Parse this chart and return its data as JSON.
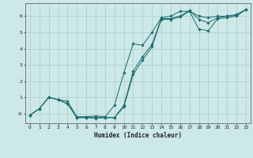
{
  "xlabel": "Humidex (Indice chaleur)",
  "ylabel": "",
  "bg_color": "#cce8e8",
  "grid_color": "#b0c8c8",
  "line_color": "#1a6b6b",
  "xlim": [
    -0.5,
    23.5
  ],
  "ylim": [
    -0.6,
    6.8
  ],
  "yticks": [
    0,
    1,
    2,
    3,
    4,
    5,
    6
  ],
  "ytick_labels": [
    "-0",
    "1",
    "2",
    "3",
    "4",
    "5",
    "6"
  ],
  "xticks": [
    0,
    1,
    2,
    3,
    4,
    5,
    6,
    7,
    8,
    9,
    10,
    11,
    12,
    13,
    14,
    15,
    16,
    17,
    18,
    19,
    20,
    21,
    22,
    23
  ],
  "series": [
    {
      "x": [
        0,
        1,
        2,
        3,
        4,
        5,
        6,
        7,
        8,
        9,
        10,
        11,
        12,
        13,
        14,
        15,
        16,
        17,
        18,
        19,
        20,
        21,
        22,
        23
      ],
      "y": [
        -0.1,
        0.3,
        1.0,
        0.85,
        0.75,
        -0.2,
        -0.2,
        -0.15,
        -0.2,
        0.5,
        2.5,
        4.3,
        4.2,
        5.0,
        5.9,
        6.0,
        6.3,
        6.3,
        6.0,
        5.9,
        6.0,
        6.0,
        6.1,
        6.4
      ]
    },
    {
      "x": [
        0,
        1,
        2,
        3,
        4,
        5,
        6,
        7,
        8,
        9,
        10,
        11,
        12,
        13,
        14,
        15,
        16,
        17,
        18,
        19,
        20,
        21,
        22,
        23
      ],
      "y": [
        -0.1,
        0.3,
        1.0,
        0.85,
        0.6,
        -0.25,
        -0.25,
        -0.25,
        -0.25,
        -0.25,
        0.5,
        2.6,
        3.5,
        4.25,
        5.85,
        5.85,
        6.0,
        6.35,
        5.8,
        5.6,
        5.9,
        6.0,
        6.05,
        6.4
      ]
    },
    {
      "x": [
        0,
        1,
        2,
        3,
        4,
        5,
        6,
        7,
        8,
        9,
        10,
        11,
        12,
        13,
        14,
        15,
        16,
        17,
        18,
        19,
        20,
        21,
        22,
        23
      ],
      "y": [
        -0.1,
        0.3,
        1.0,
        0.85,
        0.6,
        -0.25,
        -0.25,
        -0.3,
        -0.25,
        -0.25,
        0.4,
        2.4,
        3.3,
        4.1,
        5.8,
        5.8,
        5.95,
        6.3,
        5.2,
        5.1,
        5.85,
        5.9,
        6.0,
        6.4
      ]
    }
  ]
}
